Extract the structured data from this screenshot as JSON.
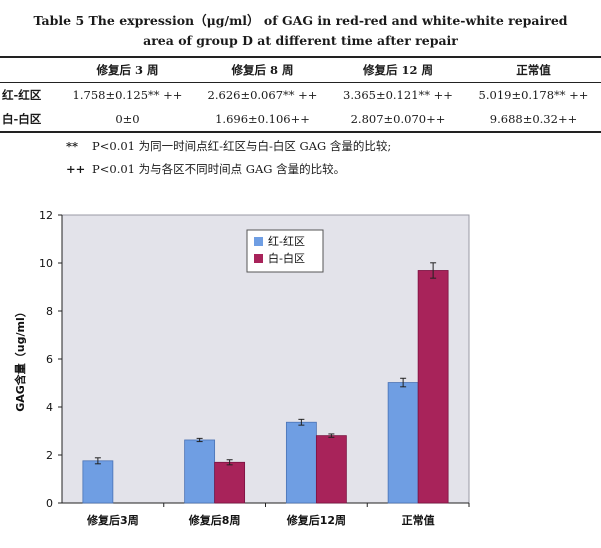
{
  "caption": {
    "line1": "Table 5    The expression（μg/ml）  of GAG in red-red and white-white repaired",
    "line2": "area of group D at different time after repair"
  },
  "table": {
    "headers": [
      "",
      "修复后 3 周",
      "修复后 8 周",
      "修复后 12 周",
      "正常值"
    ],
    "rows": [
      {
        "label": "红-红区",
        "cells": [
          "1.758±0.125** ++",
          "2.626±0.067** ++",
          "3.365±0.121** ++",
          "5.019±0.178** ++"
        ]
      },
      {
        "label": "白-白区",
        "cells": [
          "0±0",
          "1.696±0.106++",
          "2.807±0.070++",
          "9.688±0.32++"
        ]
      }
    ]
  },
  "notes": [
    {
      "mark": "**",
      "text": "P<0.01  为同一时间点红-红区与白-白区 GAG 含量的比较;"
    },
    {
      "mark": "++",
      "text": "P<0.01  为与各区不同时间点 GAG 含量的比较。"
    }
  ],
  "colors": {
    "series_red_red": "#6f9ee3",
    "series_white_white": "#a8235a",
    "plot_bg": "#e3e3ea",
    "error_bar": "#222222"
  },
  "chart_data": {
    "type": "bar",
    "categories": [
      "修复后3周",
      "修复后8周",
      "修复后12周",
      "正常值"
    ],
    "series": [
      {
        "name": "红-红区",
        "values": [
          1.758,
          2.626,
          3.365,
          5.019
        ],
        "errors": [
          0.125,
          0.067,
          0.121,
          0.178
        ]
      },
      {
        "name": "白-白区",
        "values": [
          0,
          1.696,
          2.807,
          9.688
        ],
        "errors": [
          0,
          0.106,
          0.07,
          0.32
        ]
      }
    ],
    "ylabel": "GAG含量（ug/ml）",
    "ylim": [
      0,
      12
    ],
    "yticks": [
      "0",
      "2",
      "4",
      "6",
      "8",
      "10",
      "12"
    ],
    "grid": false,
    "legend": "top-center"
  }
}
